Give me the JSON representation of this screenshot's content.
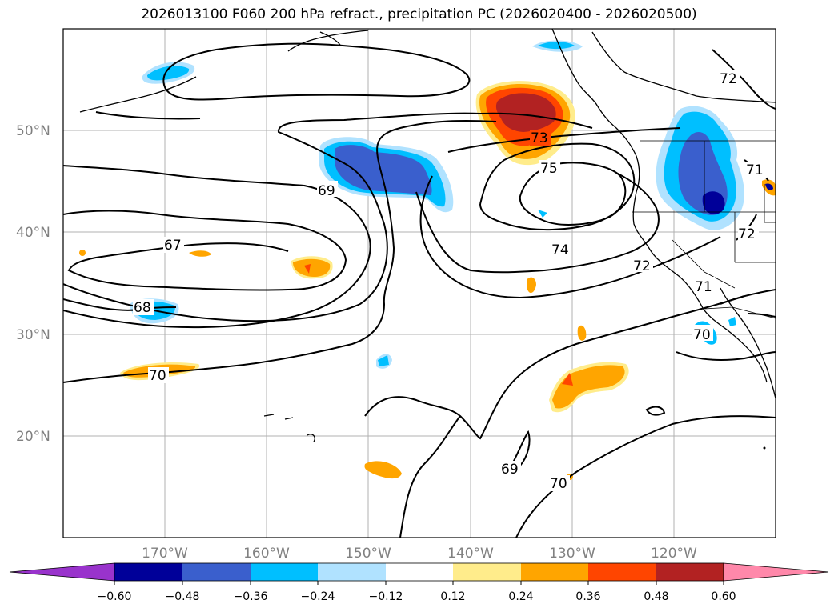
{
  "title": "2026013100 F060 200 hPa refract., precipitation PC (2026020400 - 2026020500)",
  "map": {
    "lon_range": [
      -180,
      -110
    ],
    "lat_range": [
      10,
      60
    ],
    "lat_labels": [
      "50°N",
      "40°N",
      "30°N",
      "20°N"
    ],
    "lat_values": [
      50,
      40,
      30,
      20
    ],
    "lon_labels": [
      "170°W",
      "160°W",
      "150°W",
      "140°W",
      "130°W",
      "120°W"
    ],
    "lon_values": [
      -170,
      -160,
      -150,
      -140,
      -130,
      -120
    ],
    "grid": true
  },
  "contour_labels": [
    "67",
    "68",
    "69",
    "69",
    "70",
    "70",
    "70",
    "71",
    "71",
    "72",
    "72",
    "72",
    "73",
    "74",
    "75"
  ],
  "colorbar": {
    "extend": "both",
    "tick_labels": [
      "−0.60",
      "−0.48",
      "−0.36",
      "−0.24",
      "−0.12",
      "0.12",
      "0.24",
      "0.36",
      "0.48",
      "0.60"
    ],
    "colors": [
      "#9933cc",
      "#000099",
      "#3a5fcd",
      "#00bfff",
      "#b0e2ff",
      "#ffffff",
      "#ffec8b",
      "#ffa500",
      "#ff4500",
      "#b22222",
      "#ff88aa"
    ]
  }
}
